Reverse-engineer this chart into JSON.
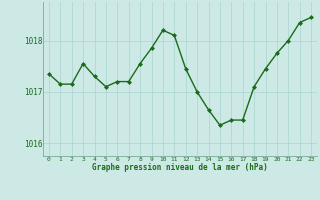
{
  "x": [
    0,
    1,
    2,
    3,
    4,
    5,
    6,
    7,
    8,
    9,
    10,
    11,
    12,
    13,
    14,
    15,
    16,
    17,
    18,
    19,
    20,
    21,
    22,
    23
  ],
  "y": [
    1017.35,
    1017.15,
    1017.15,
    1017.55,
    1017.3,
    1017.1,
    1017.2,
    1017.2,
    1017.55,
    1017.85,
    1018.2,
    1018.1,
    1017.45,
    1017.0,
    1016.65,
    1016.35,
    1016.45,
    1016.45,
    1017.1,
    1017.45,
    1017.75,
    1018.0,
    1018.35,
    1018.45
  ],
  "line_color": "#1a6b1a",
  "marker_color": "#1a6b1a",
  "bg_color": "#cce9e5",
  "grid_color": "#aad4cf",
  "xlabel": "Graphe pression niveau de la mer (hPa)",
  "xlabel_color": "#1a6b1a",
  "tick_color": "#1a6b1a",
  "spine_color": "#7aaa99",
  "ylim": [
    1015.75,
    1018.75
  ],
  "yticks": [
    1016,
    1017,
    1018
  ],
  "xlim": [
    -0.5,
    23.5
  ],
  "xticks": [
    0,
    1,
    2,
    3,
    4,
    5,
    6,
    7,
    8,
    9,
    10,
    11,
    12,
    13,
    14,
    15,
    16,
    17,
    18,
    19,
    20,
    21,
    22,
    23
  ]
}
